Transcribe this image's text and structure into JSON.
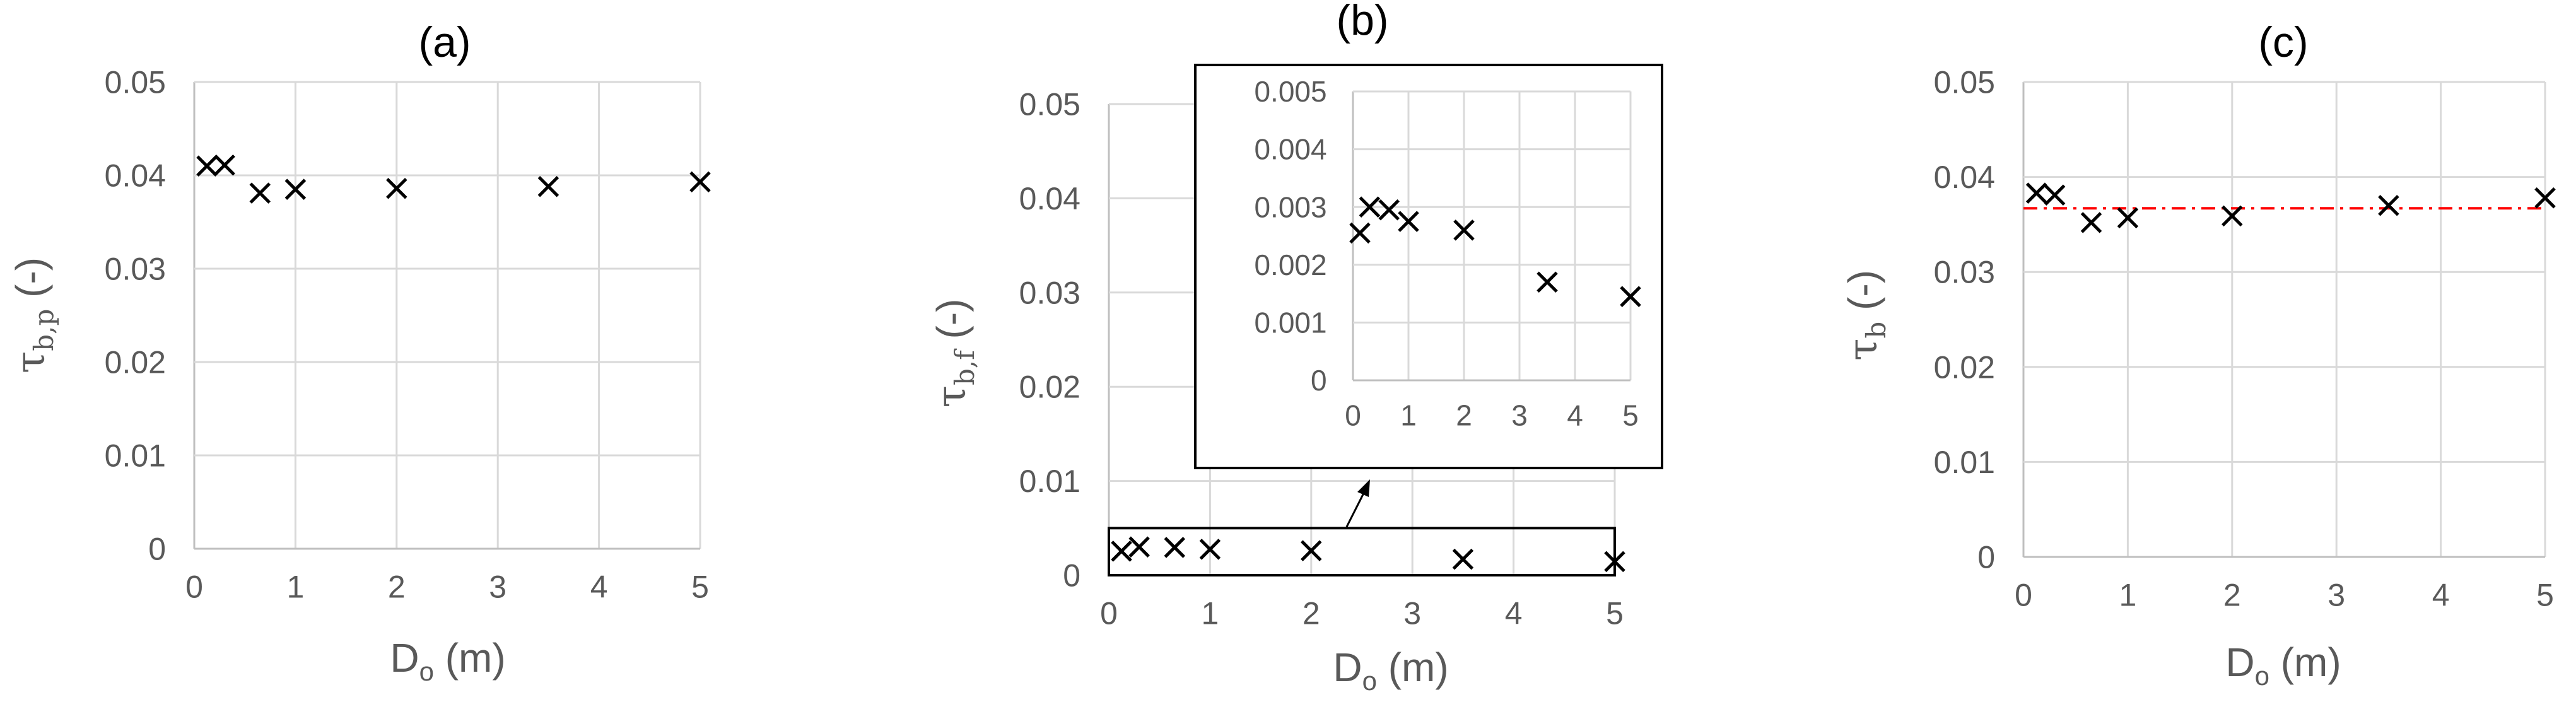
{
  "chart_data": [
    {
      "id": "a",
      "type": "scatter",
      "title": "(a)",
      "xlabel": {
        "main": "D",
        "sub": "o",
        "rest": " (m)"
      },
      "ylabel": {
        "sym": "τ",
        "sub": "b,p",
        "rest": " (-)"
      },
      "xlim": [
        0,
        5
      ],
      "ylim": [
        0,
        0.05
      ],
      "xticks": [
        "0",
        "1",
        "2",
        "3",
        "4",
        "5"
      ],
      "yticks": [
        "0",
        "0.01",
        "0.02",
        "0.03",
        "0.04",
        "0.05"
      ],
      "grid": true,
      "marker": "x",
      "series": [
        {
          "x": [
            0.125,
            0.3,
            0.65,
            1,
            2,
            3.5,
            5
          ],
          "y": [
            0.041,
            0.0411,
            0.0381,
            0.0385,
            0.0386,
            0.0388,
            0.0393
          ]
        }
      ]
    },
    {
      "id": "b",
      "type": "scatter",
      "title": "(b)",
      "xlabel": {
        "main": "D",
        "sub": "o",
        "rest": " (m)"
      },
      "ylabel": {
        "sym": "τ",
        "sub": "b,f",
        "rest": " (-)"
      },
      "xlim": [
        0,
        5
      ],
      "ylim": [
        0,
        0.05
      ],
      "xticks": [
        "0",
        "1",
        "2",
        "3",
        "4",
        "5"
      ],
      "yticks": [
        "0",
        "0.01",
        "0.02",
        "0.03",
        "0.04",
        "0.05"
      ],
      "grid": true,
      "marker": "x",
      "series": [
        {
          "x": [
            0.125,
            0.3,
            0.65,
            1,
            2,
            3.5,
            5
          ],
          "y": [
            0.00255,
            0.003,
            0.00295,
            0.00275,
            0.0026,
            0.0017,
            0.00145
          ]
        }
      ],
      "zoom_box": {
        "xlim": [
          0,
          5
        ],
        "ylim": [
          0,
          0.005
        ]
      },
      "inset": {
        "xlim": [
          0,
          5
        ],
        "ylim": [
          0,
          0.005
        ],
        "xticks": [
          "0",
          "1",
          "2",
          "3",
          "4",
          "5"
        ],
        "yticks": [
          "0",
          "0.001",
          "0.002",
          "0.003",
          "0.004",
          "0.005"
        ]
      }
    },
    {
      "id": "c",
      "type": "scatter",
      "title": "(c)",
      "xlabel": {
        "main": "D",
        "sub": "o",
        "rest": " (m)"
      },
      "ylabel": {
        "sym": "τ",
        "sub": "b",
        "rest": " (-)"
      },
      "xlim": [
        0,
        5
      ],
      "ylim": [
        0,
        0.05
      ],
      "xticks": [
        "0",
        "1",
        "2",
        "3",
        "4",
        "5"
      ],
      "yticks": [
        "0",
        "0.01",
        "0.02",
        "0.03",
        "0.04",
        "0.05"
      ],
      "grid": true,
      "marker": "x",
      "series": [
        {
          "x": [
            0.125,
            0.3,
            0.65,
            1,
            2,
            3.5,
            5
          ],
          "y": [
            0.0383,
            0.0381,
            0.0352,
            0.0357,
            0.0359,
            0.037,
            0.0378
          ]
        }
      ],
      "reference_line": {
        "y": 0.0367,
        "color": "#ff0000",
        "style": "dash-dot"
      }
    }
  ],
  "colors": {
    "axis": "#bfbfbf",
    "grid": "#d9d9d9",
    "text": "#595959",
    "marker": "#000000"
  }
}
